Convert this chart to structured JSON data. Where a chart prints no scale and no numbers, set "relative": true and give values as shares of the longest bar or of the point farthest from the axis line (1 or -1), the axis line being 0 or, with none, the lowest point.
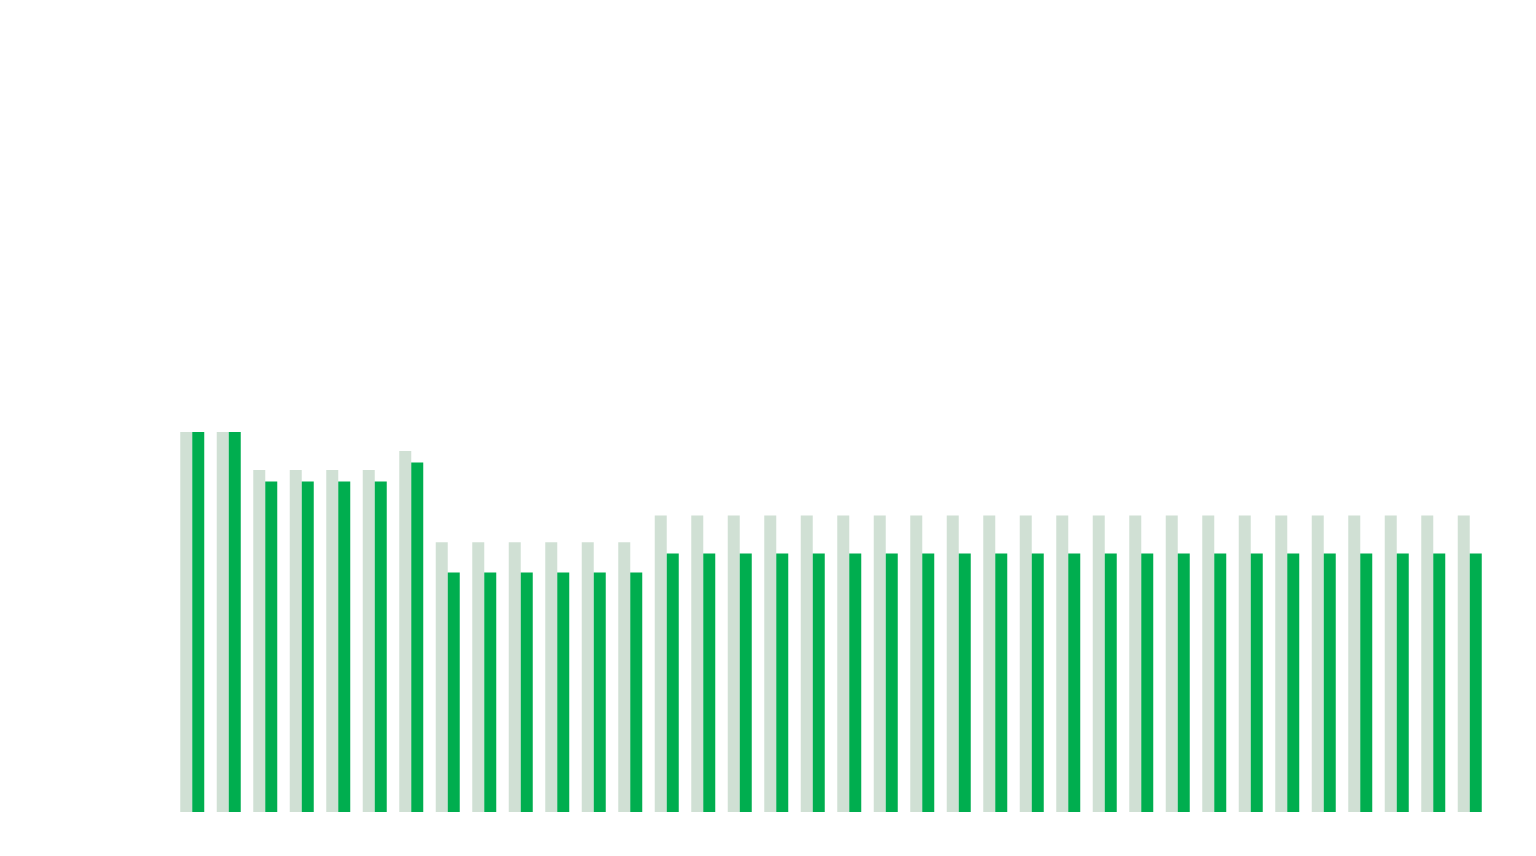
{
  "chart_data": {
    "type": "bar",
    "relative": true,
    "categories": [
      null,
      null,
      null,
      null,
      null,
      null,
      null,
      null,
      null,
      null,
      null,
      null,
      null,
      null,
      null,
      null,
      null,
      null,
      null,
      null,
      null,
      null,
      null,
      null,
      null,
      null,
      null,
      null,
      null,
      null,
      null,
      null,
      null,
      null,
      null,
      null
    ],
    "series": [
      {
        "color": "#d0e0d4",
        "values": [
          1,
          1,
          0.9,
          0.9,
          0.9,
          0.9,
          0.95,
          0.71,
          0.71,
          0.71,
          0.71,
          0.71,
          0.71,
          0.78,
          0.78,
          0.78,
          0.78,
          0.78,
          0.78,
          0.78,
          0.78,
          0.78,
          0.78,
          0.78,
          0.78,
          0.78,
          0.78,
          0.78,
          0.78,
          0.78,
          0.78,
          0.78,
          0.78,
          0.78,
          0.78,
          0.78
        ]
      },
      {
        "color": "#00ae4f",
        "values": [
          1,
          1,
          0.87,
          0.87,
          0.87,
          0.87,
          0.92,
          0.63,
          0.63,
          0.63,
          0.63,
          0.63,
          0.63,
          0.68,
          0.68,
          0.68,
          0.68,
          0.68,
          0.68,
          0.68,
          0.68,
          0.68,
          0.68,
          0.68,
          0.68,
          0.68,
          0.68,
          0.68,
          0.68,
          0.68,
          0.68,
          0.68,
          0.68,
          0.68,
          0.68,
          0.68
        ]
      }
    ]
  }
}
